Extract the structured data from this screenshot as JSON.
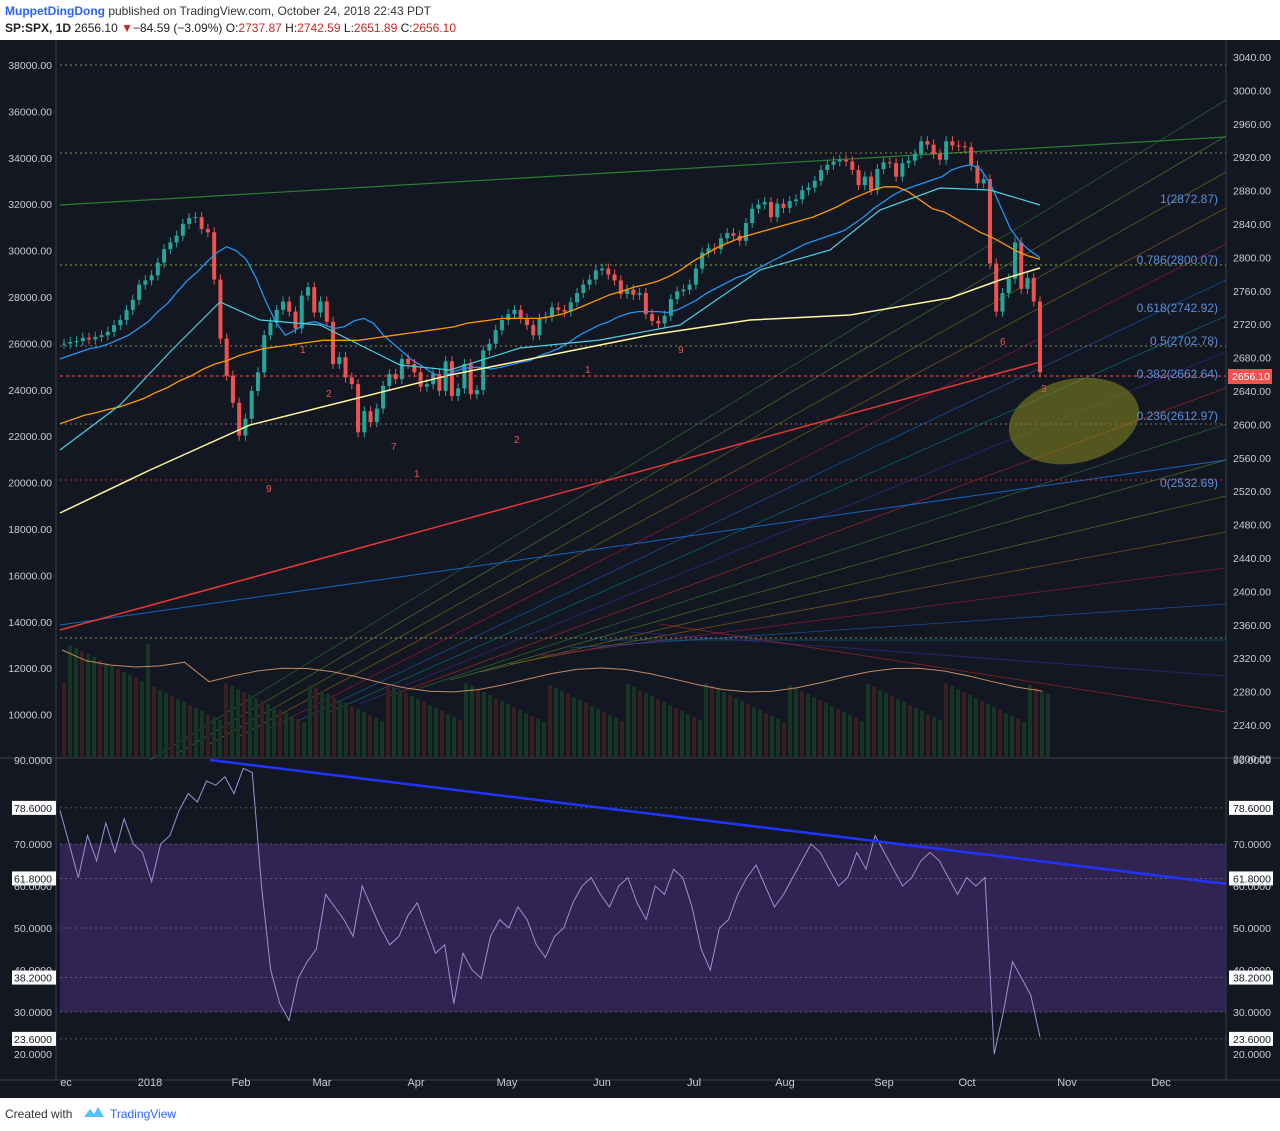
{
  "header": {
    "author": "MuppetDingDong",
    "published_text": "published on TradingView.com, October 24, 2018 22:43 PDT",
    "symbol": "SP:SPX, 1D",
    "last": "2656.10",
    "change_arrow": "▼",
    "change": "−84.59 (−3.09%)",
    "open_label": "O:",
    "open": "2737.87",
    "high_label": "H:",
    "high": "2742.59",
    "low_label": "L:",
    "low": "2651.89",
    "close_label": "C:",
    "close": "2656.10"
  },
  "footer": {
    "created_with": "Created with",
    "brand": "TradingView"
  },
  "colors": {
    "background": "#131722",
    "up": "#26a69a",
    "down": "#ef5350",
    "ma_fast": "#2196f3",
    "ma_mid": "#ff9800",
    "ma_slow": "#4dd0e1",
    "ma_long": "#fff59d",
    "support_line": "#e53935",
    "rsi": "#9e8fd6",
    "rsi_band": "#3b2a63",
    "trendline": "#2233ff",
    "ellipse": "#8a8a1e"
  },
  "chart_data": [
    {
      "type": "line",
      "title": "",
      "left_axis_ticks": [
        "38000.00",
        "36000.00",
        "34000.00",
        "32000.00",
        "30000.00",
        "28000.00",
        "26000.00",
        "24000.00",
        "22000.00",
        "20000.00",
        "18000.00",
        "16000.00",
        "14000.00",
        "12000.00",
        "10000.00"
      ],
      "right_axis_ticks": [
        "3040.00",
        "3000.00",
        "2960.00",
        "2920.00",
        "2880.00",
        "2840.00",
        "2800.00",
        "2760.00",
        "2720.00",
        "2680.00",
        "2640.00",
        "2600.00",
        "2560.00",
        "2520.00",
        "2480.00",
        "2440.00",
        "2400.00",
        "2360.00",
        "2320.00",
        "2280.00",
        "2240.00",
        "2200.00"
      ],
      "ylim": [
        2200,
        3050
      ],
      "x_labels": [
        "ec",
        "2018",
        "Feb",
        "Mar",
        "Apr",
        "May",
        "Jun",
        "Jul",
        "Aug",
        "Sep",
        "Oct",
        "Nov",
        "Dec"
      ],
      "last_price_label": "2656.10",
      "series": [
        {
          "values": [
            2690,
            2692,
            2693,
            2697,
            2695,
            2698,
            2700,
            2704,
            2712,
            2718,
            2730,
            2742,
            2760,
            2765,
            2771,
            2786,
            2802,
            2810,
            2818,
            2832,
            2839,
            2840,
            2826,
            2822,
            2766,
            2696,
            2652,
            2620,
            2581,
            2601,
            2634,
            2656,
            2700,
            2715,
            2730,
            2740,
            2728,
            2708,
            2747,
            2757,
            2727,
            2740,
            2716,
            2666,
            2674,
            2650,
            2642,
            2585,
            2610,
            2597,
            2613,
            2640,
            2654,
            2648,
            2672,
            2666,
            2656,
            2639,
            2642,
            2654,
            2634,
            2669,
            2628,
            2637,
            2666,
            2630,
            2635,
            2682,
            2690,
            2706,
            2718,
            2725,
            2730,
            2720,
            2712,
            2700,
            2720,
            2722,
            2733,
            2730,
            2728,
            2739,
            2750,
            2760,
            2766,
            2777,
            2779,
            2772,
            2765,
            2749,
            2754,
            2748,
            2750,
            2725,
            2717,
            2714,
            2723,
            2743,
            2752,
            2754,
            2760,
            2779,
            2798,
            2803,
            2802,
            2815,
            2821,
            2818,
            2812,
            2833,
            2850,
            2855,
            2858,
            2840,
            2856,
            2851,
            2859,
            2861,
            2872,
            2875,
            2883,
            2896,
            2902,
            2906,
            2908,
            2906,
            2896,
            2878,
            2888,
            2872,
            2897,
            2905,
            2904,
            2888,
            2904,
            2907,
            2915,
            2930,
            2926,
            2915,
            2908,
            2930,
            2925,
            2924,
            2923,
            2901,
            2880,
            2885,
            2785,
            2728,
            2750,
            2767,
            2810,
            2755,
            2768,
            2740,
            2656
          ]
        },
        {
          "name": "",
          "values": [
            2672,
            2676,
            2680,
            2684,
            2686,
            2690,
            2695,
            2700,
            2708,
            2716,
            2728,
            2738,
            2752,
            2765,
            2775,
            2787,
            2798,
            2805,
            2800,
            2790,
            2768,
            2740,
            2716,
            2700,
            2706,
            2714,
            2716,
            2712,
            2708,
            2710,
            2717,
            2720,
            2714,
            2700,
            2690,
            2680,
            2670,
            2663,
            2655,
            2650,
            2656,
            2660,
            2662,
            2662,
            2660,
            2662,
            2665,
            2668,
            2670,
            2676,
            2680,
            2685,
            2692,
            2700,
            2706,
            2712,
            2716,
            2722,
            2726,
            2728,
            2728,
            2728,
            2727,
            2730,
            2736,
            2742,
            2750,
            2756,
            2762,
            2768,
            2772,
            2778,
            2784,
            2790,
            2796,
            2802,
            2808,
            2812,
            2816,
            2820,
            2824,
            2832,
            2840,
            2850,
            2858,
            2866,
            2872,
            2876,
            2880,
            2884,
            2888,
            2896,
            2900,
            2902,
            2896,
            2878,
            2852,
            2826,
            2810,
            2800,
            2792
          ]
        },
        {
          "name": "",
          "values": [
            2595,
            2600,
            2605,
            2608,
            2612,
            2615,
            2620,
            2625,
            2632,
            2638,
            2646,
            2652,
            2660,
            2666,
            2670,
            2676,
            2680,
            2684,
            2686,
            2688,
            2690,
            2692,
            2694,
            2694,
            2694,
            2694,
            2696,
            2698,
            2700,
            2702,
            2704,
            2706,
            2708,
            2710,
            2714,
            2716,
            2718,
            2720,
            2720,
            2720,
            2720,
            2722,
            2725,
            2730,
            2736,
            2742,
            2748,
            2752,
            2757,
            2760,
            2764,
            2770,
            2778,
            2788,
            2796,
            2804,
            2810,
            2816,
            2820,
            2824,
            2828,
            2832,
            2836,
            2840,
            2846,
            2852,
            2860,
            2866,
            2872,
            2876,
            2876,
            2870,
            2860,
            2850,
            2846,
            2838,
            2830,
            2822,
            2816,
            2808,
            2800,
            2794,
            2790
          ]
        }
      ]
    },
    {
      "type": "line",
      "title": "",
      "axis_ticks": [
        "90.0000",
        "78.6000",
        "70.0000",
        "61.8000",
        "60.0000",
        "50.0000",
        "40.0000",
        "38.2000",
        "30.0000",
        "23.6000",
        "20.0000"
      ],
      "ylim": [
        15,
        90
      ],
      "series": [
        {
          "values": [
            78,
            70,
            62,
            72,
            66,
            75,
            68,
            76,
            70,
            68,
            61,
            70,
            72,
            78,
            82,
            80,
            85,
            84,
            86,
            82,
            88,
            87,
            60,
            40,
            32,
            28,
            38,
            42,
            45,
            58,
            55,
            52,
            48,
            60,
            55,
            50,
            46,
            48,
            53,
            56,
            50,
            44,
            46,
            32,
            44,
            40,
            38,
            48,
            52,
            50,
            55,
            52,
            46,
            43,
            48,
            50,
            56,
            60,
            62,
            58,
            55,
            60,
            62,
            56,
            52,
            60,
            58,
            64,
            62,
            55,
            45,
            40,
            50,
            52,
            58,
            62,
            65,
            60,
            55,
            58,
            62,
            66,
            70,
            68,
            64,
            60,
            62,
            68,
            64,
            72,
            68,
            64,
            60,
            62,
            66,
            68,
            66,
            62,
            58,
            62,
            60,
            62,
            20,
            30,
            42,
            38,
            34,
            24
          ]
        }
      ]
    }
  ],
  "fib_levels": [
    "1(2872.87)",
    "0.786(2800.07)",
    "0.618(2742.92)",
    "0.5(2702.78)",
    "0.382(2662.64)",
    "0.236(2612.97)",
    "0(2532.69)"
  ],
  "annotations": [
    "9",
    "1",
    "1",
    "2",
    "2",
    "1",
    "7",
    "9",
    "6",
    "3"
  ]
}
